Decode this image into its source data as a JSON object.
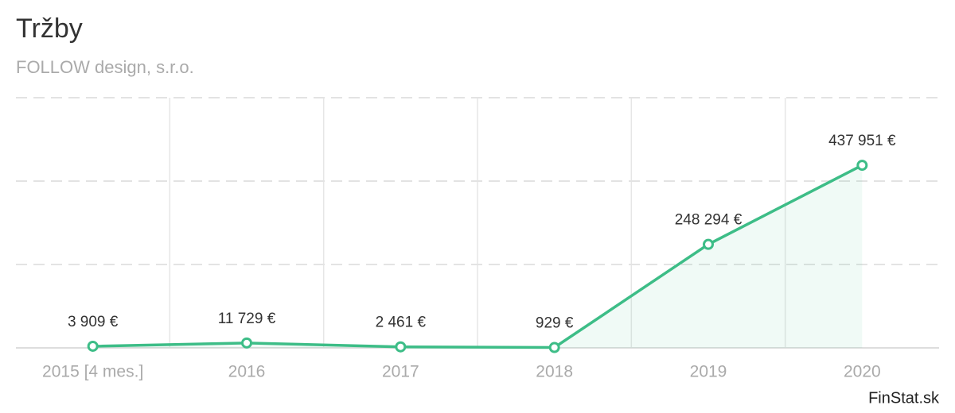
{
  "chart_data": {
    "type": "line",
    "title": "Tržby",
    "subtitle": "FOLLOW design, s.r.o.",
    "categories": [
      "2015 [4 mes.]",
      "2016",
      "2017",
      "2018",
      "2019",
      "2020"
    ],
    "values": [
      3909,
      11729,
      2461,
      929,
      248294,
      437951
    ],
    "value_labels": [
      "3 909 €",
      "11 729 €",
      "2 461 €",
      "929 €",
      "248 294 €",
      "437 951 €"
    ],
    "color": "#3dbd87",
    "ylim": [
      0,
      600000
    ],
    "yticks": [
      0,
      200000,
      400000,
      600000
    ],
    "grid": true,
    "source": "FinStat.sk"
  }
}
